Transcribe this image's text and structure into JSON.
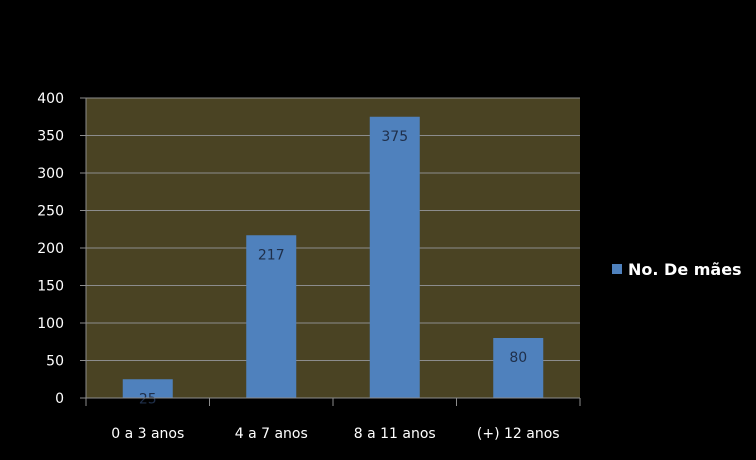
{
  "chart_data": {
    "type": "bar",
    "categories": [
      "0 a 3 anos",
      "4 a 7 anos",
      "8 a 11 anos",
      "(+) 12 anos"
    ],
    "series": [
      {
        "name": "No. De mães",
        "values": [
          25,
          217,
          375,
          80
        ]
      }
    ],
    "data_labels": [
      "25",
      "217",
      "375",
      "80"
    ],
    "yticks": [
      "0",
      "50",
      "100",
      "150",
      "200",
      "250",
      "300",
      "350",
      "400"
    ],
    "ylim": [
      0,
      400
    ],
    "grid": true,
    "legend": "right",
    "colors": {
      "background": "#000000",
      "plot_area": "#4a4323",
      "bar": "#4f81bd",
      "grid": "#8c8c8c",
      "text": "#ffffff",
      "data_label": "#1f2f4a"
    }
  }
}
